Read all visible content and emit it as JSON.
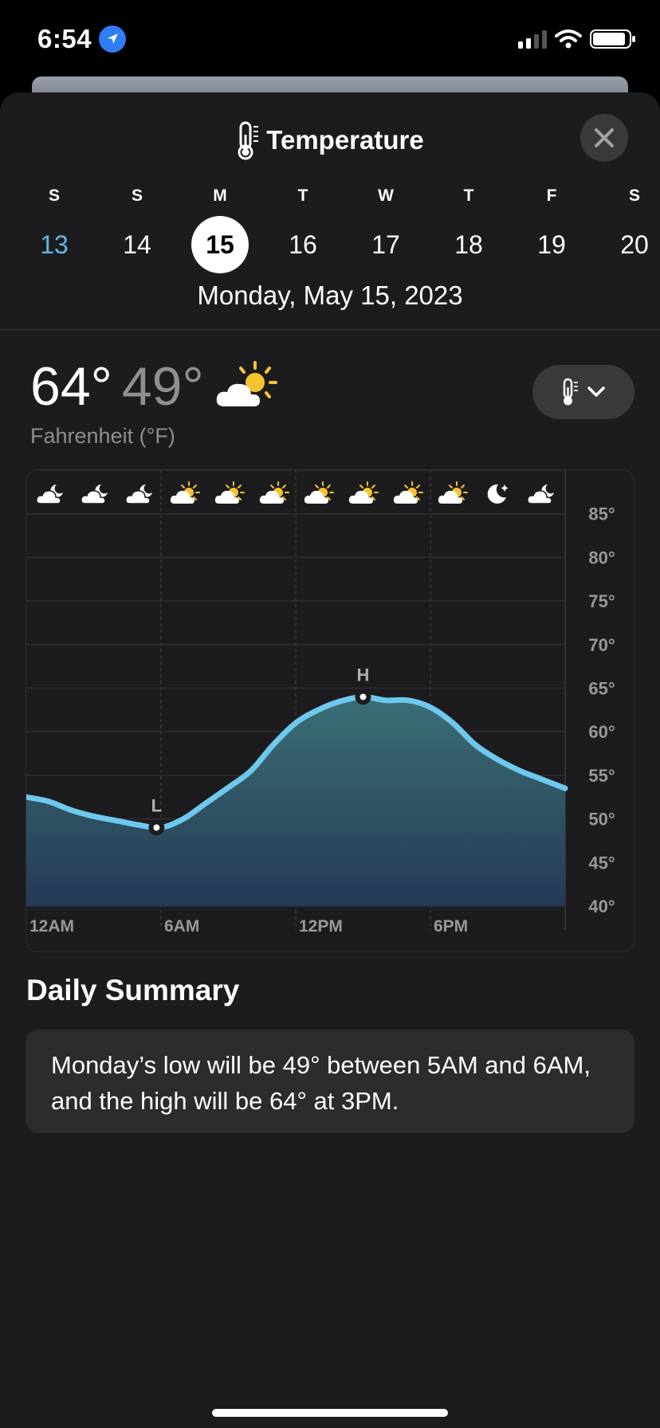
{
  "status_bar": {
    "time": "6:54",
    "icons": [
      "location-arrow-icon",
      "cellular-signal-icon",
      "wifi-icon",
      "battery-icon"
    ]
  },
  "header": {
    "title": "Temperature",
    "icon": "thermometer-icon",
    "close_icon": "close-icon"
  },
  "week": {
    "days": [
      {
        "dow": "S",
        "num": "13",
        "state": "past"
      },
      {
        "dow": "S",
        "num": "14",
        "state": "normal"
      },
      {
        "dow": "M",
        "num": "15",
        "state": "selected"
      },
      {
        "dow": "T",
        "num": "16",
        "state": "normal"
      },
      {
        "dow": "W",
        "num": "17",
        "state": "normal"
      },
      {
        "dow": "T",
        "num": "18",
        "state": "normal"
      },
      {
        "dow": "F",
        "num": "19",
        "state": "normal"
      },
      {
        "dow": "S",
        "num": "20",
        "state": "normal"
      }
    ],
    "full_date": "Monday, May 15, 2023"
  },
  "current": {
    "high": "64°",
    "low": "49°",
    "condition_icon": "partly-sunny-icon",
    "unit_label": "Fahrenheit (°F)",
    "unit_selector_icon": "thermometer-icon"
  },
  "chart_data": {
    "type": "area",
    "x_label_hours": [
      0,
      6,
      12,
      18
    ],
    "x_tick_labels": [
      "12AM",
      "6AM",
      "12PM",
      "6PM"
    ],
    "y_tick_labels": [
      "85°",
      "80°",
      "75°",
      "70°",
      "65°",
      "60°",
      "55°",
      "50°",
      "45°",
      "40°"
    ],
    "ylim": [
      40,
      90
    ],
    "xlim": [
      0,
      24
    ],
    "hours": [
      0,
      1,
      2,
      3,
      4,
      5,
      6,
      7,
      8,
      9,
      10,
      11,
      12,
      13,
      14,
      15,
      16,
      17,
      18,
      19,
      20,
      21,
      22,
      23,
      24
    ],
    "temperatures": [
      52.5,
      52,
      51,
      50.3,
      49.8,
      49.3,
      49,
      50,
      51.8,
      53.6,
      55.5,
      58.5,
      61,
      62.5,
      63.5,
      64,
      63.6,
      63.6,
      62.8,
      61,
      58.5,
      56.8,
      55.5,
      54.5,
      53.5
    ],
    "low_marker": {
      "hour": 5.8,
      "value": 49,
      "label": "L"
    },
    "high_marker": {
      "hour": 15,
      "value": 64,
      "label": "H"
    },
    "condition_icons": [
      "partly-cloudy-night-icon",
      "partly-cloudy-night-icon",
      "partly-cloudy-night-icon",
      "partly-sunny-icon",
      "partly-sunny-icon",
      "partly-sunny-icon",
      "partly-sunny-icon",
      "partly-sunny-icon",
      "partly-sunny-icon",
      "partly-sunny-icon",
      "moon-icon",
      "partly-cloudy-night-icon"
    ],
    "grid": true,
    "line_color": "#6ec8ee"
  },
  "summary": {
    "title": "Daily Summary",
    "text": "Monday’s low will be 49° between 5AM and 6AM, and the high will be 64° at 3PM."
  },
  "colors": {
    "background": "#1c1c1e",
    "accent_blue": "#63b6e8",
    "secondary_text": "#8e8e93",
    "card": "#2c2c2e"
  }
}
